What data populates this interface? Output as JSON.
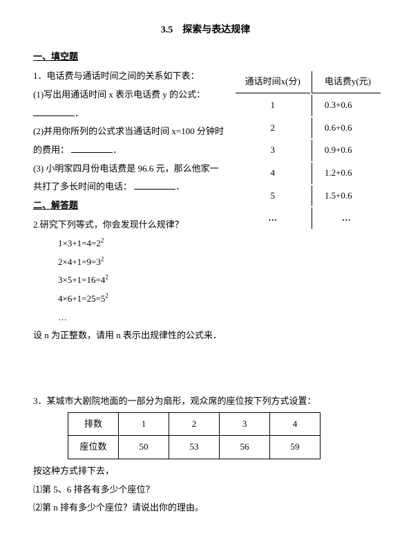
{
  "title": "3.5　探索与表达规律",
  "section1": {
    "heading": "一、填空题",
    "q1_intro": "1．电话费与通话时间之间的关系如下表：",
    "q1_1": "(1)写出用通话时间 x 表示电话费 y 的公式：",
    "q1_1_tail": "．",
    "q1_2": "(2)并用你所列的公式求当通话时间 x=100 分钟时的费用：",
    "q1_2_tail": "．",
    "q1_3": "(3) 小明家四月份电话费是 96.6 元，那么他家一共打了多长时间的电话：",
    "q1_3_tail": "．",
    "phone_table": {
      "col1_head": "通话时间x(分)",
      "col2_head": "电话费y(元)",
      "rows": [
        {
          "x": "1",
          "y": "0.3+0.6"
        },
        {
          "x": "2",
          "y": "0.6+0.6"
        },
        {
          "x": "3",
          "y": "0.9+0.6"
        },
        {
          "x": "4",
          "y": "1.2+0.6"
        },
        {
          "x": "5",
          "y": "1.5+0.6"
        },
        {
          "x": "…",
          "y": "…"
        }
      ]
    }
  },
  "section2": {
    "heading": "二、解答题",
    "q2_intro": "2.研究下列等式，你会发现什么规律？",
    "equations": {
      "eq1a": "1×3+1=4=2",
      "eq1b": "2",
      "eq2a": "2×4+1=9=3",
      "eq2b": "2",
      "eq3a": "3×5+1=16=4",
      "eq3b": "2",
      "eq4a": "4×6+1=25=5",
      "eq4b": "2",
      "eq_ellipsis": "…"
    },
    "q2_conclusion": "设 n 为正整数，请用 n 表示出规律性的公式来．",
    "q3_intro": "3．某城市大剧院地面的一部分为扇形，观众席的座位按下列方式设置：",
    "seat_table": {
      "row_label_1": "排数",
      "row_label_2": "座位数",
      "cols": [
        "1",
        "2",
        "3",
        "4"
      ],
      "seats": [
        "50",
        "53",
        "56",
        "59"
      ]
    },
    "q3_continue": "按这种方式排下去，",
    "q3_1": "⑴第 5、6 排各有多少个座位？",
    "q3_2": "⑵第 n 排有多少个座位？请说出你的理由。"
  }
}
